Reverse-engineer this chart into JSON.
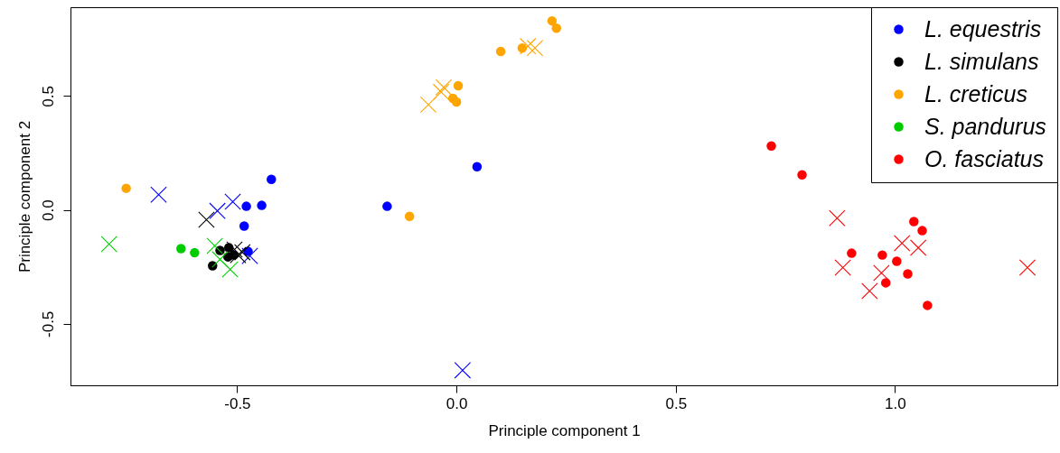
{
  "chart_data": {
    "type": "scatter",
    "xlabel": "Principle component 1",
    "ylabel": "Principle component 2",
    "xlim": [
      -0.88,
      1.37
    ],
    "ylim": [
      -0.77,
      0.89
    ],
    "xticks": [
      {
        "value": -0.5,
        "label": "-0.5"
      },
      {
        "value": 0,
        "label": "0.0"
      },
      {
        "value": 0.5,
        "label": "0.5"
      },
      {
        "value": 1,
        "label": "1.0"
      }
    ],
    "yticks": [
      {
        "value": -0.5,
        "label": "-0.5"
      },
      {
        "value": 0,
        "label": "0.0"
      },
      {
        "value": 0.5,
        "label": "0.5"
      }
    ],
    "grid": false,
    "legend": "top right",
    "series": [
      {
        "name": "L. equestris",
        "color": "#0000ff",
        "marker": "circle",
        "x": [
          -0.422,
          -0.444,
          -0.479,
          -0.484,
          -0.475,
          -0.158,
          0.047
        ],
        "values": [
          0.134,
          0.02,
          0.016,
          -0.071,
          -0.182,
          0.016,
          0.19
        ]
      },
      {
        "name": "L. simulans",
        "color": "#000000",
        "marker": "circle",
        "x": [
          -0.539,
          -0.519,
          -0.521,
          -0.556,
          -0.508
        ],
        "values": [
          -0.178,
          -0.166,
          -0.206,
          -0.245,
          -0.198
        ]
      },
      {
        "name": "L. creticus",
        "color": "#ffa500",
        "marker": "circle",
        "x": [
          -0.753,
          -0.107,
          0.218,
          0.228,
          0.101,
          0.15,
          0.004,
          -0.008,
          0.0
        ],
        "values": [
          0.095,
          -0.028,
          0.83,
          0.798,
          0.696,
          0.711,
          0.545,
          0.49,
          0.474
        ]
      },
      {
        "name": "S. pandurus",
        "color": "#00cd00",
        "marker": "circle",
        "x": [
          -0.628,
          -0.597
        ],
        "values": [
          -0.17,
          -0.188
        ]
      },
      {
        "name": "O. fasciatus",
        "color": "#ff0000",
        "marker": "circle",
        "x": [
          0.718,
          0.788,
          1.043,
          1.062,
          0.901,
          0.971,
          1.004,
          1.029,
          0.979,
          1.074
        ],
        "values": [
          0.281,
          0.154,
          -0.051,
          -0.091,
          -0.19,
          -0.198,
          -0.225,
          -0.281,
          -0.32,
          -0.419
        ]
      },
      {
        "color": "#0000ff",
        "marker": "cross",
        "x": [
          -0.679,
          -0.545,
          -0.51,
          -0.471,
          0.014
        ],
        "values": [
          0.067,
          -0.004,
          0.036,
          -0.202,
          -0.704
        ]
      },
      {
        "color": "#000000",
        "marker": "cross",
        "x": [
          -0.57,
          -0.506,
          -0.498,
          -0.488
        ],
        "values": [
          -0.043,
          -0.174,
          -0.198,
          -0.186
        ]
      },
      {
        "color": "#ffa500",
        "marker": "cross",
        "x": [
          -0.064,
          -0.029,
          -0.035,
          0.163,
          0.179
        ],
        "values": [
          0.462,
          0.538,
          0.518,
          0.719,
          0.711
        ]
      },
      {
        "color": "#00cd00",
        "marker": "cross",
        "x": [
          -0.792,
          -0.551,
          -0.539,
          -0.516
        ],
        "values": [
          -0.15,
          -0.158,
          -0.217,
          -0.261
        ]
      },
      {
        "color": "#ff0000",
        "marker": "cross",
        "x": [
          0.868,
          1.016,
          1.053,
          0.881,
          0.969,
          0.942,
          1.302
        ],
        "values": [
          -0.036,
          -0.146,
          -0.166,
          -0.253,
          -0.277,
          -0.356,
          -0.253
        ]
      }
    ]
  }
}
